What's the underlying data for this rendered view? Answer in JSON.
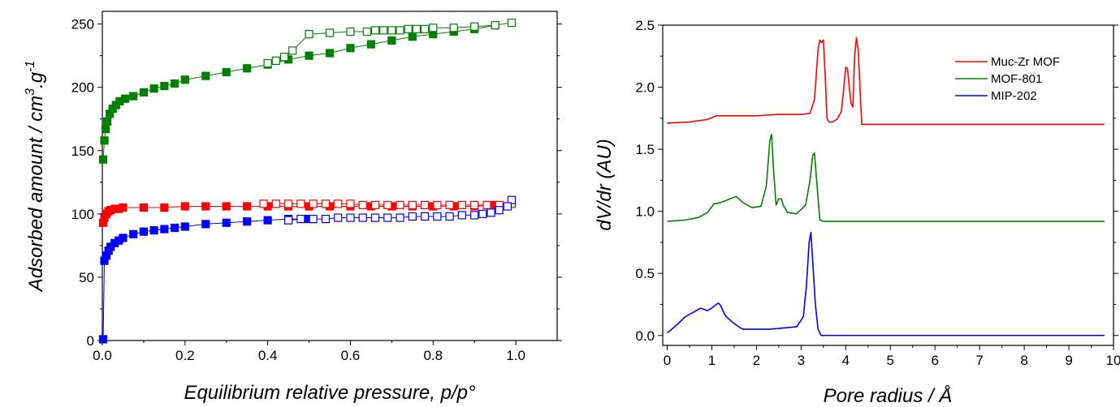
{
  "chart_data": [
    {
      "type": "scatter",
      "title": "",
      "xlabel": "Equilibrium relative pressure, p/p°",
      "ylabel_main": "Adsorbed amount / cm",
      "ylabel_sup1": "3",
      "ylabel_mid": ".g",
      "ylabel_sup2": "-1",
      "xlim": [
        0,
        1.1
      ],
      "ylim": [
        0,
        260
      ],
      "xticks": [
        0.0,
        0.2,
        0.4,
        0.6,
        0.8,
        1.0
      ],
      "xtick_labels": [
        "0.0",
        "0.2",
        "0.4",
        "0.6",
        "0.8",
        "1.0"
      ],
      "yticks": [
        0,
        50,
        100,
        150,
        200,
        250
      ],
      "ytick_labels": [
        "0",
        "50",
        "100",
        "150",
        "200",
        "250"
      ],
      "grid": false,
      "series": [
        {
          "color": "#008000",
          "adsorption": {
            "x": [
              0.002,
              0.005,
              0.008,
              0.012,
              0.018,
              0.025,
              0.033,
              0.042,
              0.055,
              0.075,
              0.1,
              0.125,
              0.15,
              0.175,
              0.2,
              0.25,
              0.3,
              0.35,
              0.4,
              0.45,
              0.5,
              0.55,
              0.6,
              0.65,
              0.7,
              0.75,
              0.8,
              0.85,
              0.9,
              0.95
            ],
            "y": [
              143,
              158,
              167,
              173,
              179,
              183,
              186,
              189,
              191,
              193,
              196,
              199,
              201,
              203,
              206,
              209,
              212,
              215,
              218,
              222,
              225,
              227,
              231,
              234,
              237,
              240,
              242,
              244,
              246,
              249
            ]
          },
          "desorption": {
            "x": [
              0.99,
              0.95,
              0.9,
              0.85,
              0.8,
              0.78,
              0.76,
              0.74,
              0.72,
              0.7,
              0.68,
              0.66,
              0.64,
              0.6,
              0.55,
              0.5,
              0.46,
              0.44,
              0.42,
              0.4
            ],
            "y": [
              251,
              249,
              248,
              247,
              247,
              246,
              246,
              246,
              245,
              245,
              245,
              245,
              244,
              244,
              243,
              242,
              229,
              224,
              221,
              219
            ]
          }
        },
        {
          "color": "#ff0000",
          "adsorption": {
            "x": [
              0.002,
              0.005,
              0.01,
              0.015,
              0.02,
              0.03,
              0.04,
              0.05,
              0.1,
              0.15,
              0.2,
              0.25,
              0.3,
              0.35,
              0.4,
              0.45,
              0.5,
              0.55,
              0.6,
              0.65,
              0.7,
              0.75,
              0.8,
              0.85,
              0.9,
              0.95
            ],
            "y": [
              93,
              97,
              100,
              102,
              103,
              104,
              104,
              105,
              105,
              105,
              106,
              106,
              106,
              106,
              106,
              106,
              106,
              106,
              106,
              106,
              106,
              106,
              106,
              106,
              106,
              107
            ]
          },
          "desorption": {
            "x": [
              0.99,
              0.96,
              0.93,
              0.9,
              0.87,
              0.84,
              0.81,
              0.78,
              0.75,
              0.72,
              0.69,
              0.66,
              0.63,
              0.6,
              0.57,
              0.54,
              0.51,
              0.48,
              0.45,
              0.42,
              0.39
            ],
            "y": [
              108,
              107,
              107,
              107,
              107,
              107,
              107,
              107,
              107,
              107,
              107,
              107,
              107,
              108,
              108,
              108,
              108,
              108,
              108,
              108,
              108
            ]
          }
        },
        {
          "color": "#0000ff",
          "adsorption": {
            "x": [
              0.002,
              0.005,
              0.01,
              0.015,
              0.02,
              0.03,
              0.04,
              0.05,
              0.075,
              0.1,
              0.125,
              0.15,
              0.175,
              0.2,
              0.25,
              0.3,
              0.35,
              0.4,
              0.45,
              0.5
            ],
            "y": [
              1,
              63,
              67,
              71,
              74,
              77,
              79,
              81,
              84,
              86,
              87,
              88,
              89,
              90,
              92,
              93,
              94,
              95,
              96,
              96
            ]
          },
          "desorption": {
            "x": [
              0.99,
              0.98,
              0.96,
              0.94,
              0.92,
              0.9,
              0.87,
              0.84,
              0.81,
              0.78,
              0.75,
              0.72,
              0.69,
              0.66,
              0.63,
              0.6,
              0.57,
              0.54,
              0.51,
              0.48,
              0.45
            ],
            "y": [
              111,
              106,
              103,
              101,
              100,
              99,
              99,
              98,
              98,
              98,
              98,
              97,
              97,
              97,
              97,
              97,
              97,
              96,
              96,
              96,
              95
            ]
          }
        }
      ]
    },
    {
      "type": "line",
      "title": "",
      "xlabel": "Pore radius / Å",
      "ylabel": "dV/dr (AU)",
      "xlim": [
        -0.1,
        10.0
      ],
      "ylim": [
        -0.08,
        2.5
      ],
      "xticks": [
        0,
        1,
        2,
        3,
        4,
        5,
        6,
        7,
        8,
        9,
        10
      ],
      "xtick_labels": [
        "0",
        "1",
        "2",
        "3",
        "4",
        "5",
        "6",
        "7",
        "8",
        "9",
        "10"
      ],
      "yticks": [
        0.0,
        0.5,
        1.0,
        1.5,
        2.0,
        2.5
      ],
      "ytick_labels": [
        "0.0",
        "0.5",
        "1.0",
        "1.5",
        "2.0",
        "2.5"
      ],
      "grid": false,
      "legend_position": "top-right",
      "series": [
        {
          "name": "Muc-Zr MOF",
          "color": "#ff0000",
          "x": [
            0.0,
            0.5,
            0.9,
            1.1,
            1.5,
            2.0,
            2.5,
            3.0,
            3.2,
            3.3,
            3.38,
            3.42,
            3.46,
            3.5,
            3.54,
            3.58,
            3.62,
            3.7,
            3.8,
            3.9,
            3.96,
            4.0,
            4.04,
            4.08,
            4.12,
            4.16,
            4.2,
            4.24,
            4.28,
            4.32,
            4.36,
            4.5,
            6.0,
            8.0,
            9.8
          ],
          "y": [
            1.71,
            1.72,
            1.74,
            1.77,
            1.77,
            1.77,
            1.78,
            1.78,
            1.79,
            1.9,
            2.3,
            2.38,
            2.36,
            2.38,
            2.1,
            1.75,
            1.72,
            1.72,
            1.74,
            1.8,
            2.0,
            2.16,
            2.15,
            2.0,
            1.87,
            1.84,
            2.25,
            2.4,
            2.3,
            2.0,
            1.7,
            1.7,
            1.7,
            1.7,
            1.7
          ]
        },
        {
          "name": "MOF-801",
          "color": "#008000",
          "x": [
            0.0,
            0.4,
            0.7,
            0.9,
            1.05,
            1.2,
            1.4,
            1.55,
            1.7,
            1.9,
            2.1,
            2.22,
            2.3,
            2.34,
            2.38,
            2.44,
            2.5,
            2.56,
            2.6,
            2.7,
            2.9,
            3.1,
            3.2,
            3.26,
            3.3,
            3.36,
            3.42,
            3.5,
            5.0,
            7.0,
            9.8
          ],
          "y": [
            0.92,
            0.93,
            0.95,
            0.99,
            1.06,
            1.07,
            1.1,
            1.12,
            1.07,
            1.03,
            1.04,
            1.2,
            1.57,
            1.62,
            1.35,
            1.05,
            1.1,
            1.1,
            1.05,
            0.99,
            0.98,
            1.05,
            1.25,
            1.45,
            1.47,
            1.2,
            0.93,
            0.92,
            0.92,
            0.92,
            0.92
          ]
        },
        {
          "name": "MIP-202",
          "color": "#0000ff",
          "x": [
            0.0,
            0.2,
            0.4,
            0.6,
            0.75,
            0.9,
            1.0,
            1.1,
            1.15,
            1.2,
            1.3,
            1.45,
            1.6,
            1.7,
            1.8,
            2.0,
            2.3,
            2.6,
            2.9,
            3.05,
            3.12,
            3.18,
            3.22,
            3.26,
            3.32,
            3.38,
            3.45,
            3.6,
            5.0,
            7.0,
            9.8
          ],
          "y": [
            0.02,
            0.08,
            0.15,
            0.19,
            0.22,
            0.2,
            0.22,
            0.25,
            0.26,
            0.24,
            0.16,
            0.11,
            0.07,
            0.05,
            0.05,
            0.05,
            0.05,
            0.06,
            0.07,
            0.15,
            0.4,
            0.75,
            0.83,
            0.6,
            0.25,
            0.05,
            0.0,
            0.0,
            0.0,
            0.0,
            0.0
          ]
        }
      ]
    }
  ]
}
